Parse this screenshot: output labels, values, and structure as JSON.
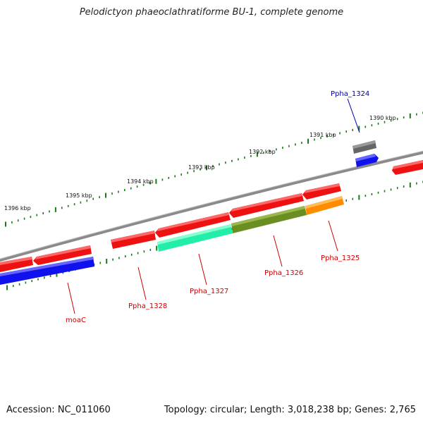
{
  "title": "Pelodictyon phaeoclathratiforme BU-1, complete genome",
  "accession": "Accession: NC_011060",
  "summary": "Topology: circular; Length: 3,018,238 bp; Genes: 2,765",
  "scale_labels": [
    "1390 kbp",
    "1391 kbp",
    "1392 kbp",
    "1393 kbp",
    "1394 kbp",
    "1395 kbp",
    "1396 kbp"
  ],
  "gene_labels": [
    {
      "text": "Ppha_1324",
      "color": "#0000aa"
    },
    {
      "text": "Ppha_1325",
      "color": "#cc0000"
    },
    {
      "text": "Ppha_1326",
      "color": "#cc0000"
    },
    {
      "text": "Ppha_1327",
      "color": "#cc0000"
    },
    {
      "text": "Ppha_1328",
      "color": "#cc0000"
    },
    {
      "text": "moaC",
      "color": "#cc0000"
    }
  ],
  "colors": {
    "backbone": "#8a8a8a",
    "tick": "#1a7a1a",
    "gene_red": "#ee1111",
    "gene_blue": "#1111ee",
    "gene_grey": "#666666",
    "gene_teal": "#22eeaa",
    "gene_olive": "#6b8e23",
    "gene_orange": "#ff8c00"
  }
}
